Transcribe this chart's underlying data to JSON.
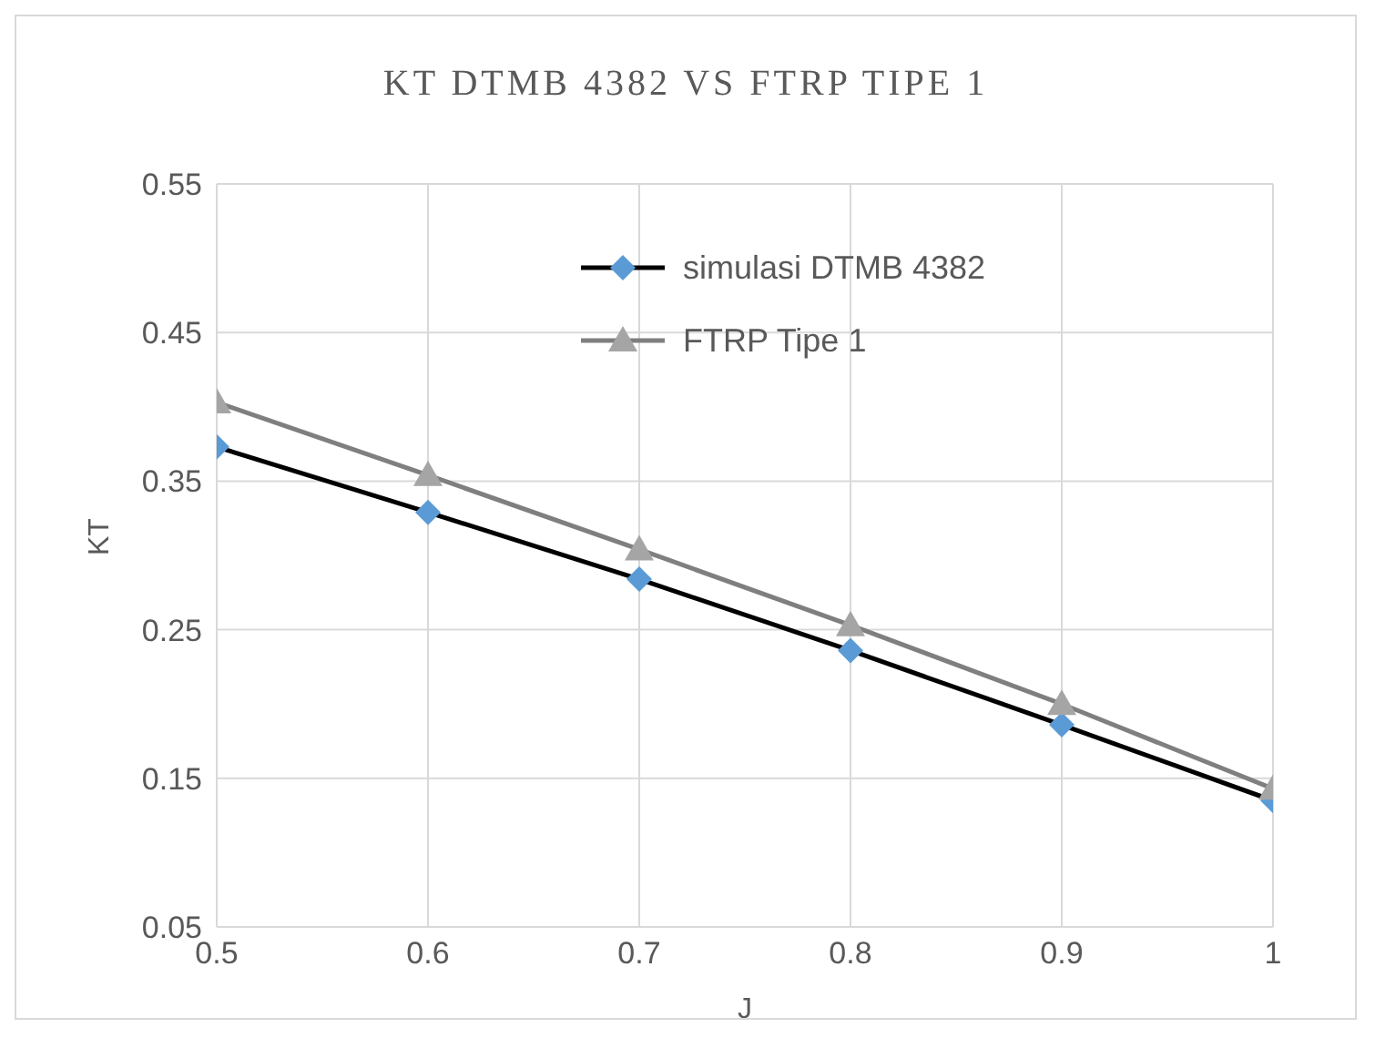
{
  "chart_data": {
    "type": "line",
    "title": "KT DTMB 4382 VS FTRP TIPE 1",
    "xlabel": "J",
    "ylabel": "KT",
    "x": [
      0.5,
      0.6,
      0.7,
      0.8,
      0.9,
      1
    ],
    "series": [
      {
        "name": "simulasi DTMB 4382",
        "color": "#000000",
        "colors": [
          "#5b9bd5",
          "#5b9bd5",
          "#5b9bd5",
          "#5b9bd5",
          "#5b9bd5",
          "#5b9bd5"
        ],
        "marker": "diamond",
        "values": [
          0.373,
          0.329,
          0.284,
          0.236,
          0.186,
          0.135
        ]
      },
      {
        "name": "FTRP Tipe 1",
        "color": "#7f7f7f",
        "colors": [
          "#a5a5a5",
          "#a5a5a5",
          "#a5a5a5",
          "#a5a5a5",
          "#a5a5a5",
          "#a5a5a5"
        ],
        "marker": "triangle",
        "values": [
          0.403,
          0.354,
          0.304,
          0.253,
          0.2,
          0.143
        ]
      }
    ],
    "xlim": [
      0.5,
      1
    ],
    "xticks": [
      0.5,
      0.6,
      0.7,
      0.8,
      0.9,
      1
    ],
    "ylim": [
      0.05,
      0.55
    ],
    "yticks": [
      0.05,
      0.15,
      0.25,
      0.35,
      0.45,
      0.55
    ],
    "grid": true,
    "legend": "top right"
  }
}
